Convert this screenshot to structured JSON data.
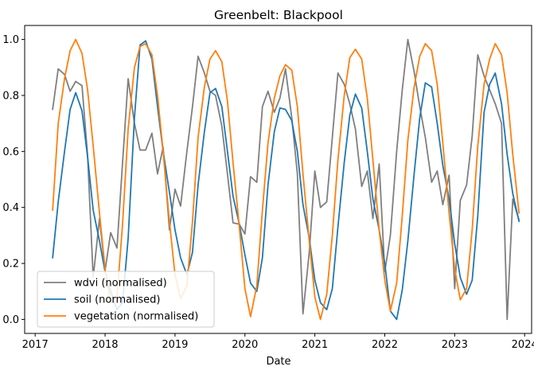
{
  "chart_data": {
    "type": "line",
    "title": "Greenbelt: Blackpool",
    "xlabel": "Date",
    "ylabel": "",
    "xlim": [
      2016.85,
      2024.1
    ],
    "ylim": [
      -0.05,
      1.05
    ],
    "xticks": [
      2017,
      2018,
      2019,
      2020,
      2021,
      2022,
      2023,
      2024
    ],
    "yticks": [
      0.0,
      0.2,
      0.4,
      0.6,
      0.8,
      1.0
    ],
    "ytick_labels": [
      "0.0",
      "0.2",
      "0.4",
      "0.6",
      "0.8",
      "1.0"
    ],
    "grid": false,
    "legend_position": "lower-left",
    "series": [
      {
        "name": "wdvi (normalised)",
        "color": "#7f7f7f",
        "x": [
          2017.25,
          2017.33,
          2017.42,
          2017.5,
          2017.58,
          2017.67,
          2017.75,
          2017.83,
          2017.92,
          2018.0,
          2018.08,
          2018.17,
          2018.25,
          2018.33,
          2018.42,
          2018.5,
          2018.58,
          2018.67,
          2018.75,
          2018.83,
          2018.92,
          2019.0,
          2019.08,
          2019.17,
          2019.25,
          2019.33,
          2019.42,
          2019.5,
          2019.58,
          2019.67,
          2019.75,
          2019.83,
          2019.92,
          2020.0,
          2020.08,
          2020.17,
          2020.25,
          2020.33,
          2020.42,
          2020.5,
          2020.58,
          2020.67,
          2020.75,
          2020.83,
          2020.92,
          2021.0,
          2021.08,
          2021.17,
          2021.25,
          2021.33,
          2021.42,
          2021.5,
          2021.58,
          2021.67,
          2021.75,
          2021.83,
          2021.92,
          2022.0,
          2022.08,
          2022.17,
          2022.25,
          2022.33,
          2022.42,
          2022.5,
          2022.58,
          2022.67,
          2022.75,
          2022.83,
          2022.92,
          2023.0,
          2023.08,
          2023.17,
          2023.25,
          2023.33,
          2023.42,
          2023.5,
          2023.58,
          2023.67,
          2023.75,
          2023.83,
          2023.92
        ],
        "y": [
          0.75,
          0.895,
          0.875,
          0.815,
          0.85,
          0.835,
          0.585,
          0.15,
          0.36,
          0.175,
          0.31,
          0.255,
          0.56,
          0.86,
          0.7,
          0.605,
          0.605,
          0.665,
          0.52,
          0.615,
          0.32,
          0.465,
          0.405,
          0.6,
          0.76,
          0.94,
          0.88,
          0.815,
          0.8,
          0.69,
          0.52,
          0.345,
          0.34,
          0.305,
          0.51,
          0.49,
          0.76,
          0.815,
          0.74,
          0.79,
          0.895,
          0.72,
          0.52,
          0.02,
          0.24,
          0.53,
          0.4,
          0.42,
          0.65,
          0.88,
          0.84,
          0.77,
          0.68,
          0.475,
          0.53,
          0.36,
          0.555,
          0.17,
          0.3,
          0.6,
          0.82,
          1.0,
          0.885,
          0.76,
          0.65,
          0.49,
          0.53,
          0.41,
          0.515,
          0.11,
          0.425,
          0.48,
          0.655,
          0.945,
          0.87,
          0.82,
          0.77,
          0.7,
          0.0,
          0.43,
          0.355
        ]
      },
      {
        "name": "soil (normalised)",
        "color": "#1f77b4",
        "x": [
          2017.25,
          2017.33,
          2017.42,
          2017.5,
          2017.58,
          2017.67,
          2017.75,
          2017.83,
          2017.92,
          2018.0,
          2018.08,
          2018.17,
          2018.25,
          2018.33,
          2018.42,
          2018.5,
          2018.58,
          2018.67,
          2018.75,
          2018.83,
          2018.92,
          2019.0,
          2019.08,
          2019.17,
          2019.25,
          2019.33,
          2019.42,
          2019.5,
          2019.58,
          2019.67,
          2019.75,
          2019.83,
          2019.92,
          2020.0,
          2020.08,
          2020.17,
          2020.25,
          2020.33,
          2020.42,
          2020.5,
          2020.58,
          2020.67,
          2020.75,
          2020.83,
          2020.92,
          2021.0,
          2021.08,
          2021.17,
          2021.25,
          2021.33,
          2021.42,
          2021.5,
          2021.58,
          2021.67,
          2021.75,
          2021.83,
          2021.92,
          2022.0,
          2022.08,
          2022.17,
          2022.25,
          2022.33,
          2022.42,
          2022.5,
          2022.58,
          2022.67,
          2022.75,
          2022.83,
          2022.92,
          2023.0,
          2023.08,
          2023.17,
          2023.25,
          2023.33,
          2023.42,
          2023.5,
          2023.58,
          2023.67,
          2023.75,
          2023.83,
          2023.92
        ],
        "y": [
          0.22,
          0.42,
          0.6,
          0.75,
          0.81,
          0.745,
          0.58,
          0.39,
          0.28,
          0.17,
          0.1,
          0.035,
          0.06,
          0.29,
          0.72,
          0.98,
          0.995,
          0.93,
          0.76,
          0.6,
          0.455,
          0.32,
          0.22,
          0.16,
          0.24,
          0.48,
          0.67,
          0.81,
          0.825,
          0.76,
          0.6,
          0.44,
          0.34,
          0.23,
          0.13,
          0.1,
          0.22,
          0.48,
          0.67,
          0.755,
          0.75,
          0.71,
          0.6,
          0.41,
          0.29,
          0.14,
          0.06,
          0.035,
          0.11,
          0.33,
          0.56,
          0.73,
          0.805,
          0.755,
          0.6,
          0.43,
          0.32,
          0.2,
          0.03,
          0.0,
          0.105,
          0.28,
          0.52,
          0.72,
          0.845,
          0.83,
          0.7,
          0.55,
          0.43,
          0.27,
          0.15,
          0.09,
          0.14,
          0.37,
          0.74,
          0.84,
          0.88,
          0.77,
          0.59,
          0.45,
          0.35
        ]
      },
      {
        "name": "vegetation (normalised)",
        "color": "#ff7f0e",
        "x": [
          2017.25,
          2017.33,
          2017.42,
          2017.5,
          2017.58,
          2017.67,
          2017.75,
          2017.83,
          2017.92,
          2018.0,
          2018.08,
          2018.17,
          2018.25,
          2018.33,
          2018.42,
          2018.5,
          2018.58,
          2018.67,
          2018.75,
          2018.83,
          2018.92,
          2019.0,
          2019.08,
          2019.17,
          2019.25,
          2019.33,
          2019.42,
          2019.5,
          2019.58,
          2019.67,
          2019.75,
          2019.83,
          2019.92,
          2020.0,
          2020.08,
          2020.17,
          2020.25,
          2020.33,
          2020.42,
          2020.5,
          2020.58,
          2020.67,
          2020.75,
          2020.83,
          2020.92,
          2021.0,
          2021.08,
          2021.17,
          2021.25,
          2021.33,
          2021.42,
          2021.5,
          2021.58,
          2021.67,
          2021.75,
          2021.83,
          2021.92,
          2022.0,
          2022.08,
          2022.17,
          2022.25,
          2022.33,
          2022.42,
          2022.5,
          2022.58,
          2022.67,
          2022.75,
          2022.83,
          2022.92,
          2023.0,
          2023.08,
          2023.17,
          2023.25,
          2023.33,
          2023.42,
          2023.5,
          2023.58,
          2023.67,
          2023.75,
          2023.83,
          2023.92
        ],
        "y": [
          0.39,
          0.7,
          0.86,
          0.96,
          1.0,
          0.95,
          0.82,
          0.62,
          0.38,
          0.18,
          0.06,
          0.08,
          0.34,
          0.68,
          0.9,
          0.975,
          0.985,
          0.945,
          0.8,
          0.6,
          0.35,
          0.16,
          0.075,
          0.12,
          0.35,
          0.65,
          0.83,
          0.93,
          0.96,
          0.92,
          0.78,
          0.56,
          0.33,
          0.11,
          0.01,
          0.12,
          0.39,
          0.63,
          0.79,
          0.87,
          0.91,
          0.89,
          0.76,
          0.52,
          0.28,
          0.08,
          0.0,
          0.09,
          0.3,
          0.57,
          0.8,
          0.935,
          0.965,
          0.93,
          0.79,
          0.57,
          0.32,
          0.14,
          0.03,
          0.13,
          0.37,
          0.64,
          0.83,
          0.94,
          0.985,
          0.96,
          0.84,
          0.63,
          0.38,
          0.18,
          0.07,
          0.11,
          0.32,
          0.62,
          0.84,
          0.93,
          0.985,
          0.945,
          0.81,
          0.59,
          0.38
        ]
      }
    ]
  }
}
